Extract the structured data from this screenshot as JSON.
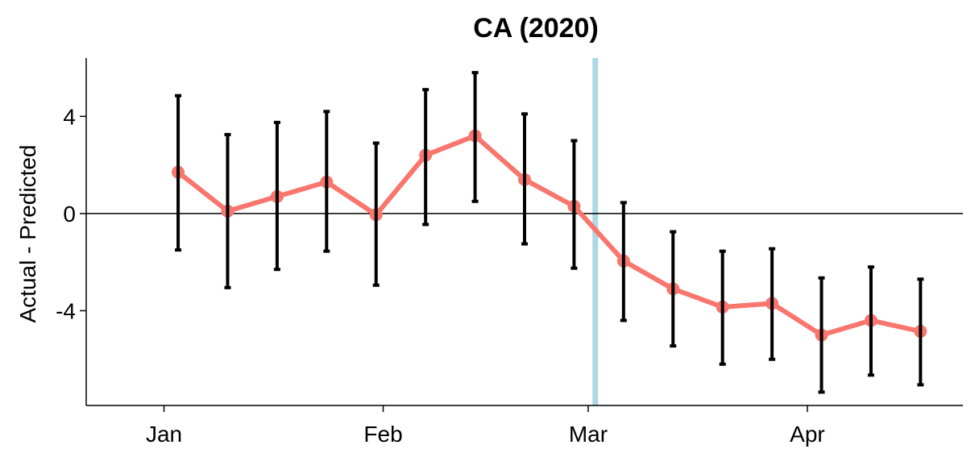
{
  "chart_data": {
    "type": "line",
    "title": "CA (2020)",
    "xlabel": "",
    "ylabel": "Actual - Predicted",
    "x_tick_labels": [
      "Jan",
      "Feb",
      "Mar",
      "Apr"
    ],
    "x_tick_dates": [
      "2020-01-01",
      "2020-02-01",
      "2020-03-01",
      "2020-04-01"
    ],
    "y_ticks": [
      -4,
      0,
      4
    ],
    "ylim": [
      -7.9,
      6.4
    ],
    "xlim": [
      "2019-12-21",
      "2020-04-23"
    ],
    "reference_line_y": 0,
    "vertical_marker_date": "2020-03-02",
    "series": [
      {
        "x": [
          "2020-01-03",
          "2020-01-10",
          "2020-01-17",
          "2020-01-24",
          "2020-01-31",
          "2020-02-07",
          "2020-02-14",
          "2020-02-21",
          "2020-02-28",
          "2020-03-06",
          "2020-03-13",
          "2020-03-20",
          "2020-03-27",
          "2020-04-03",
          "2020-04-10",
          "2020-04-17"
        ],
        "y": [
          1.7,
          0.1,
          0.7,
          1.3,
          -0.05,
          2.4,
          3.2,
          1.4,
          0.3,
          -1.95,
          -3.1,
          -3.85,
          -3.7,
          -5.0,
          -4.4,
          -4.85
        ],
        "lower": [
          -1.5,
          -3.05,
          -2.3,
          -1.55,
          -2.95,
          -0.45,
          0.5,
          -1.25,
          -2.25,
          -4.4,
          -5.45,
          -6.2,
          -6.0,
          -7.35,
          -6.65,
          -7.05
        ],
        "upper": [
          4.85,
          3.25,
          3.75,
          4.2,
          2.9,
          5.1,
          5.8,
          4.1,
          3.0,
          0.45,
          -0.75,
          -1.55,
          -1.45,
          -2.65,
          -2.2,
          -2.7
        ]
      }
    ],
    "colors": {
      "line": "#F8766D",
      "error_bar": "#000000",
      "vertical_marker": "#ADD8E6",
      "reference_line": "#000000"
    },
    "grid": false,
    "legend": "none"
  }
}
